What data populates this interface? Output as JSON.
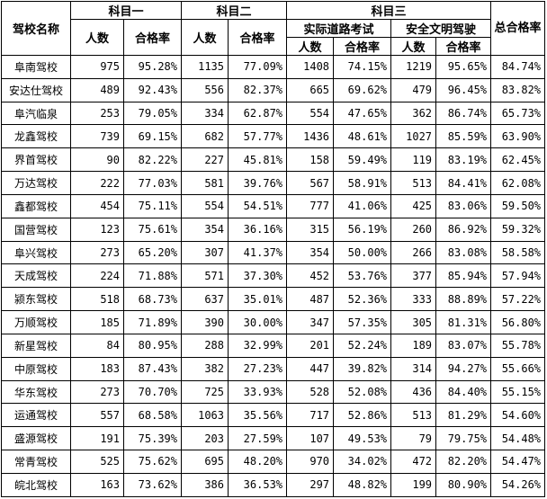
{
  "headers": {
    "school_name": "驾校名称",
    "subject1": "科目一",
    "subject2": "科目二",
    "subject3": "科目三",
    "road_test": "实际道路考试",
    "safe_driving": "安全文明驾驶",
    "total_pass_rate": "总合格率",
    "count": "人数",
    "pass_rate": "合格率"
  },
  "rows": [
    [
      "阜南驾校",
      "975",
      "95.28%",
      "1135",
      "77.09%",
      "1408",
      "74.15%",
      "1219",
      "95.65%",
      "84.74%"
    ],
    [
      "安达仕驾校",
      "489",
      "92.43%",
      "556",
      "82.37%",
      "665",
      "69.62%",
      "479",
      "96.45%",
      "83.82%"
    ],
    [
      "阜汽临泉",
      "253",
      "79.05%",
      "334",
      "62.87%",
      "554",
      "47.65%",
      "362",
      "86.74%",
      "65.73%"
    ],
    [
      "龙鑫驾校",
      "739",
      "69.15%",
      "682",
      "57.77%",
      "1436",
      "48.61%",
      "1027",
      "85.59%",
      "63.90%"
    ],
    [
      "界首驾校",
      "90",
      "82.22%",
      "227",
      "45.81%",
      "158",
      "59.49%",
      "119",
      "83.19%",
      "62.45%"
    ],
    [
      "万达驾校",
      "222",
      "77.03%",
      "581",
      "39.76%",
      "567",
      "58.91%",
      "513",
      "84.41%",
      "62.08%"
    ],
    [
      "鑫都驾校",
      "454",
      "75.11%",
      "554",
      "54.51%",
      "777",
      "41.06%",
      "425",
      "83.06%",
      "59.50%"
    ],
    [
      "国营驾校",
      "123",
      "75.61%",
      "354",
      "36.16%",
      "315",
      "56.19%",
      "260",
      "86.92%",
      "59.32%"
    ],
    [
      "阜兴驾校",
      "273",
      "65.20%",
      "307",
      "41.37%",
      "354",
      "50.00%",
      "266",
      "83.08%",
      "58.58%"
    ],
    [
      "天成驾校",
      "224",
      "71.88%",
      "571",
      "37.30%",
      "452",
      "53.76%",
      "377",
      "85.94%",
      "57.94%"
    ],
    [
      "颍东驾校",
      "518",
      "68.73%",
      "637",
      "35.01%",
      "487",
      "52.36%",
      "333",
      "88.89%",
      "57.22%"
    ],
    [
      "万顺驾校",
      "185",
      "71.89%",
      "390",
      "30.00%",
      "347",
      "57.35%",
      "305",
      "81.31%",
      "56.80%"
    ],
    [
      "新星驾校",
      "84",
      "80.95%",
      "288",
      "32.99%",
      "201",
      "52.24%",
      "189",
      "83.07%",
      "55.78%"
    ],
    [
      "中原驾校",
      "183",
      "87.43%",
      "382",
      "27.23%",
      "447",
      "39.82%",
      "314",
      "94.27%",
      "55.66%"
    ],
    [
      "华东驾校",
      "273",
      "70.70%",
      "725",
      "33.93%",
      "528",
      "52.08%",
      "436",
      "84.40%",
      "55.15%"
    ],
    [
      "运通驾校",
      "557",
      "68.58%",
      "1063",
      "35.56%",
      "717",
      "52.86%",
      "513",
      "81.29%",
      "54.60%"
    ],
    [
      "盛源驾校",
      "191",
      "75.39%",
      "203",
      "27.59%",
      "107",
      "49.53%",
      "79",
      "79.75%",
      "54.48%"
    ],
    [
      "常青驾校",
      "525",
      "75.62%",
      "695",
      "48.20%",
      "970",
      "34.02%",
      "472",
      "82.20%",
      "54.47%"
    ],
    [
      "皖北驾校",
      "163",
      "73.62%",
      "386",
      "36.53%",
      "297",
      "48.82%",
      "199",
      "80.90%",
      "54.26%"
    ]
  ]
}
